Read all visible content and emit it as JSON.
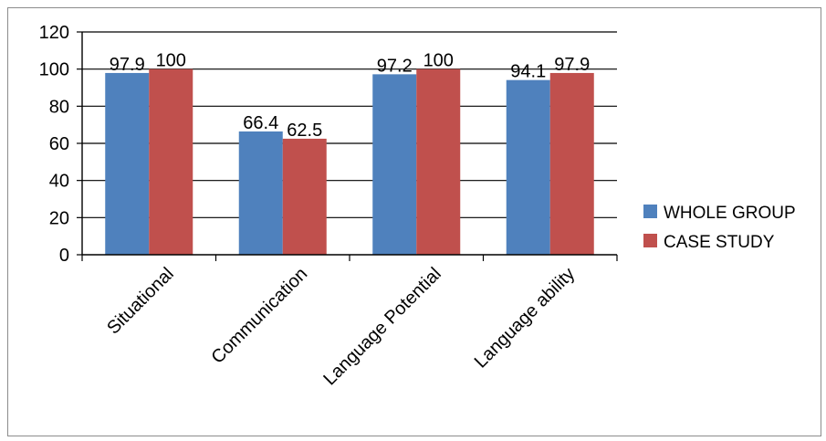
{
  "chart_data": {
    "type": "bar",
    "title": "",
    "xlabel": "",
    "ylabel": "",
    "categories": [
      "Situational",
      "Communication",
      "Language Potential",
      "Language ability"
    ],
    "series": [
      {
        "name": "WHOLE GROUP",
        "color": "#4f81bd",
        "values": [
          97.9,
          66.4,
          97.2,
          94.1
        ],
        "labels": [
          "97.9",
          "66.4",
          "97.2",
          "94.1"
        ]
      },
      {
        "name": "CASE STUDY",
        "color": "#c0504d",
        "values": [
          100,
          62.5,
          100,
          97.9
        ],
        "labels": [
          "100",
          "62.5",
          "100",
          "97.9"
        ]
      }
    ],
    "ylim": [
      0,
      120
    ],
    "yticks": [
      0,
      20,
      40,
      60,
      80,
      100,
      120
    ],
    "grid": true,
    "legend_position": "right"
  }
}
